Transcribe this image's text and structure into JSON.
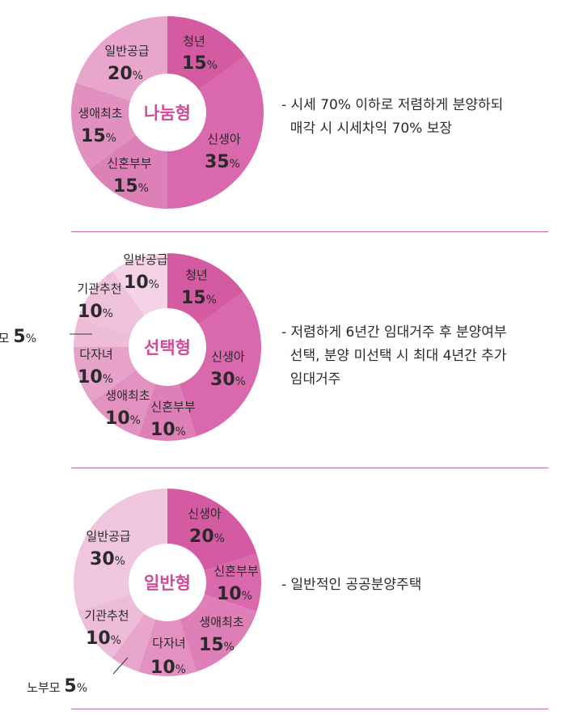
{
  "chart_data": [
    {
      "type": "pie",
      "title": "나눔형",
      "slices": [
        {
          "name": "청년",
          "value": 15,
          "color": "#d45aa1"
        },
        {
          "name": "신생아",
          "value": 35,
          "color": "#d968ac"
        },
        {
          "name": "신혼부부",
          "value": 15,
          "color": "#de80b8"
        },
        {
          "name": "생애최초",
          "value": 15,
          "color": "#e190c0"
        },
        {
          "name": "일반공급",
          "value": 20,
          "color": "#e8a6cd"
        }
      ],
      "unit": "%",
      "description": "- 시세 70% 이하로 저렴하게 분양하되\n  매각 시 시세차익 70% 보장"
    },
    {
      "type": "pie",
      "title": "선택형",
      "slices": [
        {
          "name": "청년",
          "value": 15,
          "color": "#d45aa1"
        },
        {
          "name": "신생아",
          "value": 30,
          "color": "#d968ac"
        },
        {
          "name": "신혼부부",
          "value": 10,
          "color": "#de7fb7"
        },
        {
          "name": "생애최초",
          "value": 10,
          "color": "#e391c1"
        },
        {
          "name": "다자녀",
          "value": 10,
          "color": "#e7a2ca"
        },
        {
          "name": "노부모",
          "value": 5,
          "color": "#edbcd9"
        },
        {
          "name": "기관추천",
          "value": 10,
          "color": "#efc2dc"
        },
        {
          "name": "일반공급",
          "value": 10,
          "color": "#f3d3e5"
        }
      ],
      "unit": "%",
      "description": "- 저렴하게 6년간 임대거주 후 분양여부\n  선택, 분양 미선택 시 최대 4년간 추가\n  임대거주"
    },
    {
      "type": "pie",
      "title": "일반형",
      "slices": [
        {
          "name": "신생아",
          "value": 20,
          "color": "#d45aa1"
        },
        {
          "name": "신혼부부",
          "value": 10,
          "color": "#d968ac"
        },
        {
          "name": "생애최초",
          "value": 15,
          "color": "#de7fb7"
        },
        {
          "name": "다자녀",
          "value": 10,
          "color": "#e391c1"
        },
        {
          "name": "노부모",
          "value": 5,
          "color": "#e8a6cd"
        },
        {
          "name": "기관추천",
          "value": 10,
          "color": "#edbcd9"
        },
        {
          "name": "일반공급",
          "value": 30,
          "color": "#f0c6de"
        }
      ],
      "unit": "%",
      "description": "- 일반적인 공공분양주택"
    }
  ]
}
